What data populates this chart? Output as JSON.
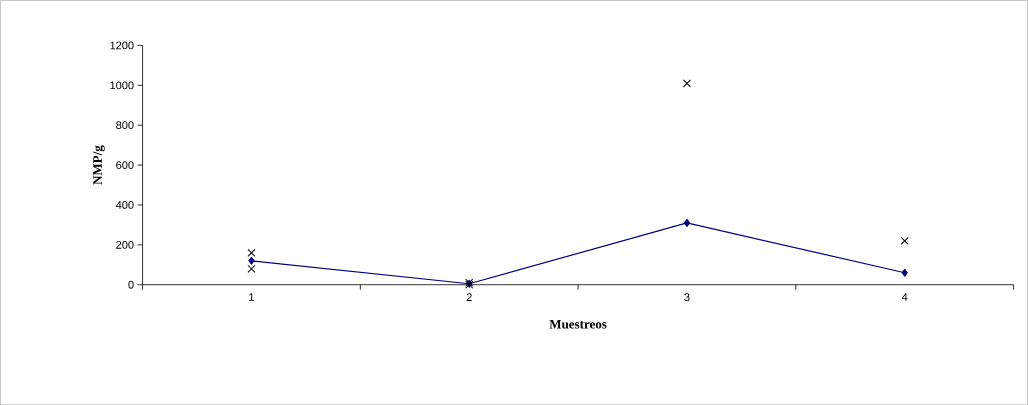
{
  "chart_data": {
    "type": "line",
    "xlabel": "Muestreos",
    "ylabel": "NMP/g",
    "categories": [
      "1",
      "2",
      "3",
      "4"
    ],
    "series": [
      {
        "color": "#000080",
        "marker": "diamond",
        "values": [
          120,
          5,
          310,
          60
        ]
      },
      {
        "type": "scatter",
        "color": "#000000",
        "marker": "cross",
        "values": [
          160,
          10,
          1010,
          220
        ]
      },
      {
        "type": "scatter",
        "color": "#000000",
        "marker": "cross",
        "values": [
          80,
          0,
          null,
          null
        ]
      }
    ],
    "ylim": [
      0,
      1200
    ],
    "yticks": [
      0,
      200,
      400,
      600,
      800,
      1000,
      1200
    ],
    "grid": false
  }
}
